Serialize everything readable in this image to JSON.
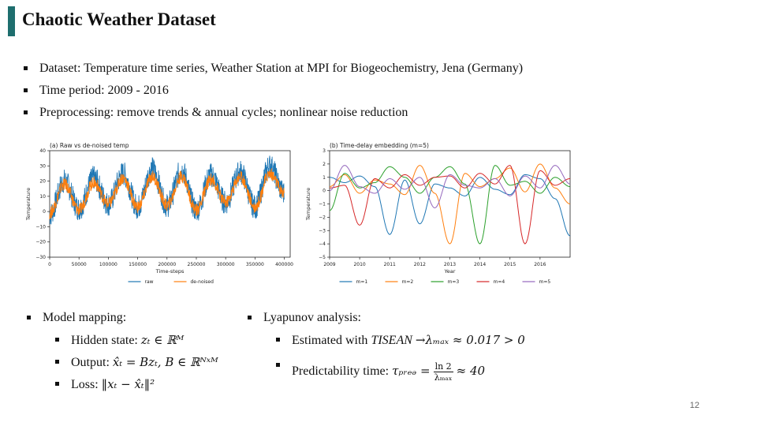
{
  "slide": {
    "title": "Chaotic Weather Dataset",
    "bullets": [
      "Dataset: Temperature time series, Weather Station at MPI for Biogeochemistry, Jena (Germany)",
      "Time period: 2009 - 2016",
      "Preprocessing: remove trends & annual cycles; nonlinear noise reduction"
    ],
    "page_number": "12",
    "accent_color": "#1e6e6e"
  },
  "left_col": {
    "heading": "Model mapping:",
    "hidden_label": "Hidden state:",
    "hidden_math": "zₜ ∈ ℝᴹ",
    "output_label": "Output:",
    "output_math": "x̂ₜ = Bzₜ,   B ∈ ℝᴺˣᴹ",
    "loss_label": "Loss:",
    "loss_math": "‖xₜ − x̂ₜ‖²"
  },
  "right_col": {
    "heading": "Lyapunov analysis:",
    "est_label": "Estimated with",
    "est_tool": "TISEAN",
    "est_math": "→λₘₐₓ ≈ 0.017 > 0",
    "pred_label": "Predictability time:",
    "pred_lhs": "τₚᵣₑₔ =",
    "pred_num": "ln 2",
    "pred_den": "λₘₐₓ",
    "pred_rhs": "≈ 40"
  },
  "chart_data": [
    {
      "type": "line",
      "title": "(a) Raw vs de-noised temp",
      "xlabel": "Time-steps",
      "ylabel": "Temperature",
      "xlim": [
        0,
        410000
      ],
      "ylim": [
        -30,
        40
      ],
      "xticks": [
        0,
        50000,
        100000,
        150000,
        200000,
        250000,
        300000,
        350000,
        400000
      ],
      "yticks": [
        -30,
        -20,
        -10,
        0,
        10,
        20,
        30,
        40
      ],
      "legend_position": "bottom",
      "series": [
        {
          "name": "raw",
          "color": "#1f77b4",
          "x": [
            0,
            25000,
            50000,
            75000,
            100000,
            125000,
            150000,
            175000,
            200000,
            225000,
            250000,
            275000,
            300000,
            325000,
            350000,
            375000,
            400000
          ],
          "values": [
            -2,
            20,
            2,
            22,
            5,
            25,
            3,
            28,
            4,
            27,
            1,
            24,
            6,
            26,
            3,
            30,
            12
          ],
          "spread": 8
        },
        {
          "name": "de-noised",
          "color": "#ff7f0e",
          "x": [
            0,
            25000,
            50000,
            75000,
            100000,
            125000,
            150000,
            175000,
            200000,
            225000,
            250000,
            275000,
            300000,
            325000,
            350000,
            375000,
            400000
          ],
          "values": [
            -1,
            18,
            1,
            19,
            5,
            22,
            3,
            23,
            4,
            23,
            1,
            21,
            6,
            23,
            3,
            25,
            12
          ],
          "spread": 4
        }
      ]
    },
    {
      "type": "line",
      "title": "(b) Time-delay embedding (m=5)",
      "xlabel": "Year",
      "ylabel": "Temperature",
      "xlim": [
        2009,
        2017
      ],
      "ylim": [
        -5,
        3
      ],
      "xticks": [
        2009,
        2010,
        2011,
        2012,
        2013,
        2014,
        2015,
        2016
      ],
      "yticks": [
        -5,
        -4,
        -3,
        -2,
        -1,
        0,
        1,
        2,
        3
      ],
      "legend_position": "bottom",
      "series": [
        {
          "name": "m=1",
          "color": "#1f77b4",
          "x": [
            2009,
            2009.5,
            2010,
            2010.5,
            2011,
            2011.5,
            2012,
            2012.5,
            2013,
            2013.5,
            2014,
            2014.5,
            2015,
            2015.5,
            2016,
            2016.5,
            2017
          ],
          "values": [
            1.0,
            0.6,
            1.1,
            0.3,
            -3.3,
            0.8,
            -2.5,
            0.5,
            0.2,
            -0.4,
            1.0,
            0.1,
            -0.3,
            1.2,
            0.9,
            -0.6,
            -3.4
          ]
        },
        {
          "name": "m=2",
          "color": "#ff7f0e",
          "x": [
            2009,
            2009.5,
            2010,
            2010.5,
            2011,
            2011.5,
            2012,
            2012.5,
            2013,
            2013.5,
            2014,
            2014.5,
            2015,
            2015.5,
            2016,
            2016.5,
            2017
          ],
          "values": [
            0.3,
            1.2,
            -0.2,
            0.8,
            0.5,
            -0.3,
            1.9,
            -0.2,
            -4.0,
            1.3,
            0.3,
            0.9,
            1.7,
            -0.1,
            2.0,
            0.2,
            -1.0
          ]
        },
        {
          "name": "m=3",
          "color": "#2ca02c",
          "x": [
            2009,
            2009.5,
            2010,
            2010.5,
            2011,
            2011.5,
            2012,
            2012.5,
            2013,
            2013.5,
            2014,
            2014.5,
            2015,
            2015.5,
            2016,
            2016.5,
            2017
          ],
          "values": [
            -1.5,
            1.3,
            0.2,
            0.6,
            1.8,
            1.0,
            -0.2,
            1.0,
            1.8,
            0.5,
            -4.0,
            1.9,
            0.4,
            0.7,
            -0.2,
            1.0,
            0.3
          ]
        },
        {
          "name": "m=4",
          "color": "#d62728",
          "x": [
            2009,
            2009.5,
            2010,
            2010.5,
            2011,
            2011.5,
            2012,
            2012.5,
            2013,
            2013.5,
            2014,
            2014.5,
            2015,
            2015.5,
            2016,
            2016.5,
            2017
          ],
          "values": [
            0.2,
            0.4,
            -2.6,
            0.9,
            0.2,
            1.2,
            0.4,
            1.0,
            1.1,
            0.2,
            1.3,
            0.5,
            1.9,
            -4.0,
            1.5,
            0.4,
            0.9
          ]
        },
        {
          "name": "m=5",
          "color": "#9467bd",
          "x": [
            2009,
            2009.5,
            2010,
            2010.5,
            2011,
            2011.5,
            2012,
            2012.5,
            2013,
            2013.5,
            2014,
            2014.5,
            2015,
            2015.5,
            2016,
            2016.5,
            2017
          ],
          "values": [
            0.0,
            1.9,
            0.3,
            -0.2,
            0.9,
            0.1,
            1.0,
            -1.3,
            1.2,
            0.4,
            0.2,
            0.9,
            -0.4,
            1.1,
            0.2,
            1.9,
            0.5
          ]
        }
      ]
    }
  ]
}
